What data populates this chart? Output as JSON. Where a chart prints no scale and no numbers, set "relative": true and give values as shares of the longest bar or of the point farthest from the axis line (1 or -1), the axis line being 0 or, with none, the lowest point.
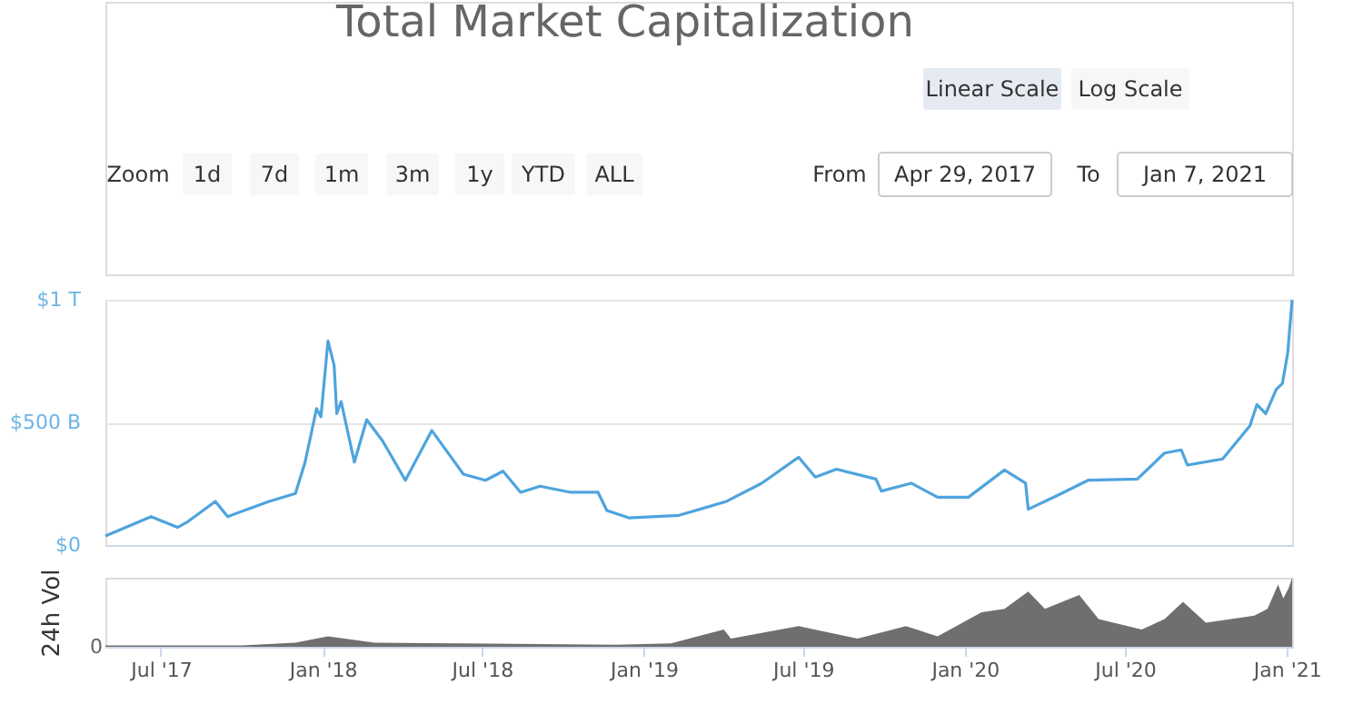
{
  "chart_data": [
    {
      "type": "line",
      "title": "Total Market Capitalization",
      "annotations": [
        "Linear Scale",
        "Log Scale",
        "Zoom",
        "1d",
        "7d",
        "1m",
        "3m",
        "1y",
        "YTD",
        "ALL",
        "From",
        "Apr 29, 2017",
        "To",
        "Jan 7, 2021"
      ],
      "x": [
        "2017-04-29",
        "2017-06-20",
        "2017-07-20",
        "2017-08-01",
        "2017-09-01",
        "2017-09-15",
        "2017-11-01",
        "2017-12-01",
        "2017-12-12",
        "2017-12-25",
        "2017-12-30",
        "2018-01-07",
        "2018-01-14",
        "2018-01-17",
        "2018-01-22",
        "2018-02-06",
        "2018-02-20",
        "2018-03-10",
        "2018-04-05",
        "2018-05-05",
        "2018-06-10",
        "2018-07-05",
        "2018-07-25",
        "2018-08-14",
        "2018-09-05",
        "2018-10-10",
        "2018-11-10",
        "2018-11-20",
        "2018-12-15",
        "2019-02-10",
        "2019-04-05",
        "2019-05-15",
        "2019-06-26",
        "2019-07-15",
        "2019-08-08",
        "2019-09-22",
        "2019-09-28",
        "2019-11-01",
        "2019-12-01",
        "2020-01-05",
        "2020-02-15",
        "2020-03-10",
        "2020-03-13",
        "2020-04-15",
        "2020-05-20",
        "2020-07-15",
        "2020-08-15",
        "2020-09-03",
        "2020-09-10",
        "2020-10-20",
        "2020-11-20",
        "2020-11-28",
        "2020-12-08",
        "2020-12-20",
        "2020-12-27",
        "2021-01-02",
        "2021-01-07"
      ],
      "series": [
        {
          "color": "#4ea4dd",
          "values": [
            37000000000.0,
            116000000000.0,
            72000000000.0,
            96000000000.0,
            178000000000.0,
            116000000000.0,
            178000000000.0,
            210000000000.0,
            338000000000.0,
            556000000000.0,
            523000000000.0,
            832000000000.0,
            733000000000.0,
            536000000000.0,
            585000000000.0,
            338000000000.0,
            511000000000.0,
            425000000000.0,
            264000000000.0,
            467000000000.0,
            289000000000.0,
            264000000000.0,
            301000000000.0,
            215000000000.0,
            240000000000.0,
            215000000000.0,
            215000000000.0,
            141000000000.0,
            111000000000.0,
            121000000000.0,
            178000000000.0,
            252000000000.0,
            358000000000.0,
            277000000000.0,
            309000000000.0,
            269000000000.0,
            220000000000.0,
            252000000000.0,
            195000000000.0,
            195000000000.0,
            306000000000.0,
            252000000000.0,
            146000000000.0,
            202000000000.0,
            264000000000.0,
            269000000000.0,
            375000000000.0,
            388000000000.0,
            326000000000.0,
            351000000000.0,
            486000000000.0,
            573000000000.0,
            536000000000.0,
            635000000000.0,
            659000000000.0,
            783000000000.0,
            1000000000000.0
          ]
        }
      ],
      "xlim": [
        "2017-04-29",
        "2021-01-07"
      ],
      "ylim": [
        0,
        1000000000000.0
      ],
      "yticks": [
        {
          "value": 0,
          "label": "$0"
        },
        {
          "value": 500000000000.0,
          "label": "$500 B"
        },
        {
          "value": 1000000000000.0,
          "label": "$1 T"
        }
      ],
      "grid": "y",
      "tick_labels": "y",
      "marker": "none",
      "line_style": "solid"
    },
    {
      "type": "area",
      "ylabel": "24h Vol",
      "relative": true,
      "annotations": [
        "0"
      ],
      "x": [
        "2017-04-29",
        "2017-10-01",
        "2017-12-01",
        "2018-01-07",
        "2018-03-01",
        "2018-06-01",
        "2018-12-01",
        "2019-02-01",
        "2019-04-02",
        "2019-04-10",
        "2019-06-26",
        "2019-09-01",
        "2019-10-26",
        "2019-12-01",
        "2020-01-20",
        "2020-02-15",
        "2020-03-13",
        "2020-04-01",
        "2020-05-10",
        "2020-06-01",
        "2020-07-20",
        "2020-08-15",
        "2020-09-05",
        "2020-10-01",
        "2020-11-25",
        "2020-12-10",
        "2020-12-22",
        "2020-12-28",
        "2021-01-03",
        "2021-01-07"
      ],
      "series": [
        {
          "color": "#6f6f6f",
          "values": [
            0.02,
            0.02,
            0.06,
            0.15,
            0.06,
            0.05,
            0.03,
            0.05,
            0.25,
            0.12,
            0.3,
            0.12,
            0.3,
            0.15,
            0.5,
            0.55,
            0.8,
            0.55,
            0.75,
            0.4,
            0.25,
            0.4,
            0.65,
            0.35,
            0.45,
            0.55,
            0.9,
            0.7,
            0.85,
            1
          ]
        }
      ],
      "xlim": [
        "2017-04-29",
        "2021-01-07"
      ],
      "xticks": [
        {
          "value": "2017-07-01",
          "label": "Jul '17"
        },
        {
          "value": "2018-01-01",
          "label": "Jan '18"
        },
        {
          "value": "2018-07-01",
          "label": "Jul '18"
        },
        {
          "value": "2019-01-01",
          "label": "Jan '19"
        },
        {
          "value": "2019-07-01",
          "label": "Jul '19"
        },
        {
          "value": "2020-01-01",
          "label": "Jan '20"
        },
        {
          "value": "2020-07-01",
          "label": "Jul '20"
        },
        {
          "value": "2021-01-01",
          "label": "Jan '21"
        }
      ],
      "tick_labels": "x"
    }
  ]
}
